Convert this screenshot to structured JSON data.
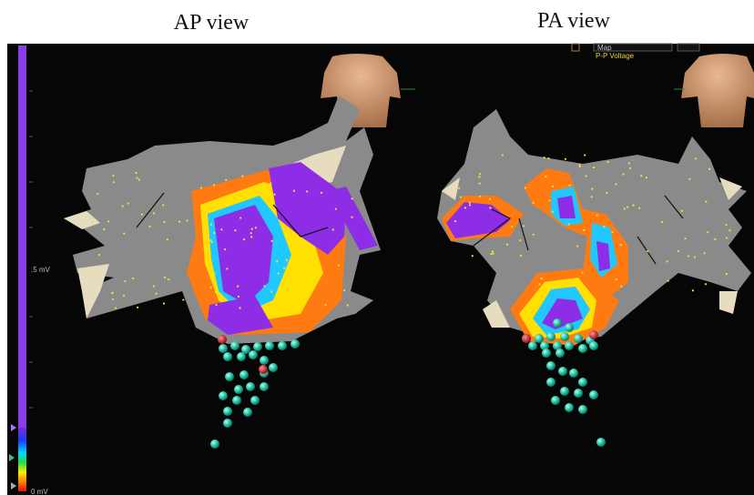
{
  "titles": {
    "left": "AP view",
    "right": "PA view"
  },
  "scale": {
    "mid": ".5 mV",
    "bottom": "0 mV"
  },
  "map_panel": {
    "name": "Map",
    "type": "P-P Voltage"
  }
}
